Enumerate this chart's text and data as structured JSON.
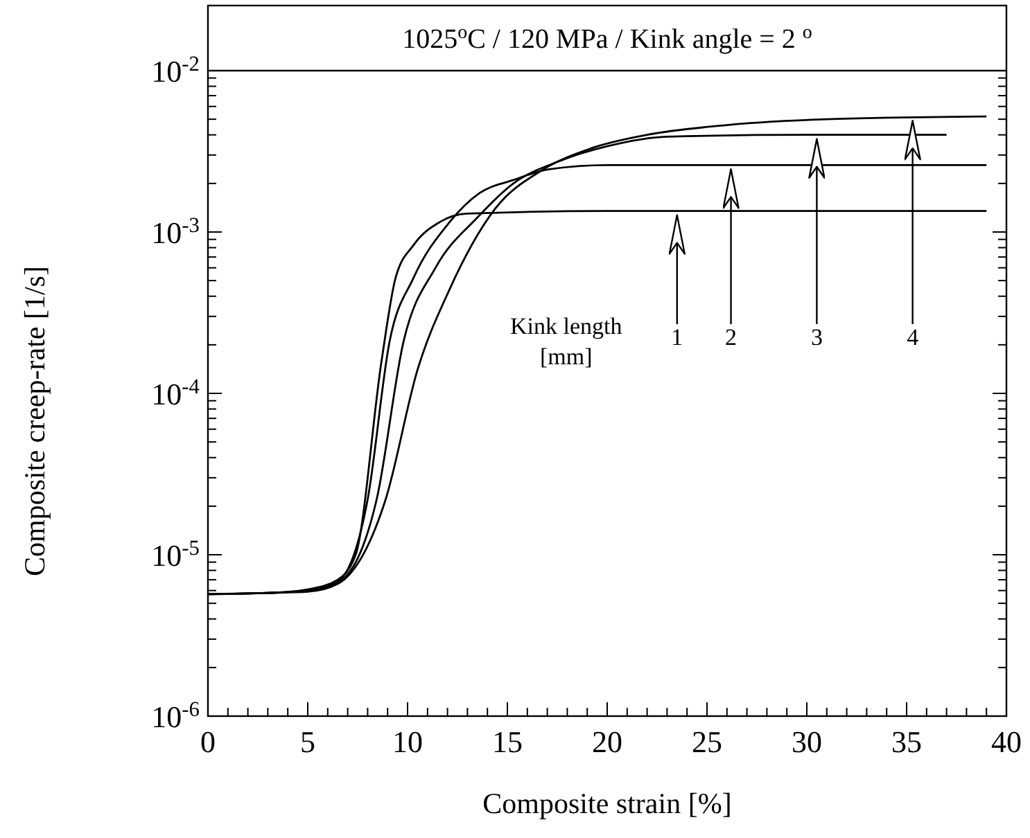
{
  "chart_data": {
    "type": "line",
    "title": "1025$^{o}$C / 120 MPa / Kink angle = 2 $^{o}$",
    "xlabel": "Composite strain [%]",
    "ylabel": "Composite creep-rate [1/s]",
    "log": "y",
    "xlim": [
      0,
      40
    ],
    "ylim": [
      1e-06,
      0.01
    ],
    "xticks": [
      0,
      {
        "value": 1,
        "label": null
      },
      {
        "value": 2,
        "label": null
      },
      {
        "value": 3,
        "label": null
      },
      {
        "value": 4,
        "label": null
      },
      5,
      {
        "value": 6,
        "label": null
      },
      {
        "value": 7,
        "label": null
      },
      {
        "value": 8,
        "label": null
      },
      {
        "value": 9,
        "label": null
      },
      10,
      {
        "value": 11,
        "label": null
      },
      {
        "value": 12,
        "label": null
      },
      {
        "value": 13,
        "label": null
      },
      {
        "value": 14,
        "label": null
      },
      15,
      {
        "value": 16,
        "label": null
      },
      {
        "value": 17,
        "label": null
      },
      {
        "value": 18,
        "label": null
      },
      {
        "value": 19,
        "label": null
      },
      20,
      {
        "value": 21,
        "label": null
      },
      {
        "value": 22,
        "label": null
      },
      {
        "value": 23,
        "label": null
      },
      {
        "value": 24,
        "label": null
      },
      25,
      {
        "value": 26,
        "label": null
      },
      {
        "value": 27,
        "label": null
      },
      {
        "value": 28,
        "label": null
      },
      {
        "value": 29,
        "label": null
      },
      30,
      {
        "value": 31,
        "label": null
      },
      {
        "value": 32,
        "label": null
      },
      {
        "value": 33,
        "label": null
      },
      {
        "value": 34,
        "label": null
      },
      35,
      {
        "value": 36,
        "label": null
      },
      {
        "value": 37,
        "label": null
      },
      {
        "value": 38,
        "label": null
      },
      {
        "value": 39,
        "label": null
      },
      40
    ],
    "yticks": [
      {
        "value": 1e-06,
        "label": "10$^{-6}$"
      },
      {
        "value": 2e-06,
        "label": null
      },
      {
        "value": 3e-06,
        "label": null
      },
      {
        "value": 4e-06,
        "label": null
      },
      {
        "value": 5e-06,
        "label": null
      },
      {
        "value": 6e-06,
        "label": null
      },
      {
        "value": 7e-06,
        "label": null
      },
      {
        "value": 8e-06,
        "label": null
      },
      {
        "value": 9e-06,
        "label": null
      },
      {
        "value": 1e-05,
        "label": "10$^{-5}$"
      },
      {
        "value": 2e-05,
        "label": null
      },
      {
        "value": 3e-05,
        "label": null
      },
      {
        "value": 4e-05,
        "label": null
      },
      {
        "value": 5e-05,
        "label": null
      },
      {
        "value": 6e-05,
        "label": null
      },
      {
        "value": 7e-05,
        "label": null
      },
      {
        "value": 8e-05,
        "label": null
      },
      {
        "value": 9e-05,
        "label": null
      },
      {
        "value": 0.0001,
        "label": "10$^{-4}$"
      },
      {
        "value": 0.0002,
        "label": null
      },
      {
        "value": 0.0003,
        "label": null
      },
      {
        "value": 0.0004,
        "label": null
      },
      {
        "value": 0.0005,
        "label": null
      },
      {
        "value": 0.0006,
        "label": null
      },
      {
        "value": 0.0007,
        "label": null
      },
      {
        "value": 0.0008,
        "label": null
      },
      {
        "value": 0.0009,
        "label": null
      },
      {
        "value": 0.001,
        "label": "10$^{-3}$"
      },
      {
        "value": 0.002,
        "label": null
      },
      {
        "value": 0.003,
        "label": null
      },
      {
        "value": 0.004,
        "label": null
      },
      {
        "value": 0.005,
        "label": null
      },
      {
        "value": 0.006,
        "label": null
      },
      {
        "value": 0.007,
        "label": null
      },
      {
        "value": 0.008,
        "label": null
      },
      {
        "value": 0.009,
        "label": null
      },
      {
        "value": 0.01,
        "label": "10$^{-2}$"
      }
    ],
    "grid": false,
    "marker": "none",
    "line_style": "solid",
    "series": [
      {
        "color": "#000000",
        "x": [
          0,
          3,
          5,
          6.5,
          7.4,
          8.7,
          9.4,
          10.3,
          11.6,
          13,
          20,
          30,
          39
        ],
        "values": [
          5.7e-06,
          5.8e-06,
          6.1e-06,
          7e-06,
          1e-05,
          0.00016,
          0.00052,
          0.00083,
          0.00115,
          0.0013,
          0.00135,
          0.00135,
          0.00135
        ]
      },
      {
        "color": "#000000",
        "x": [
          0,
          3,
          5,
          6.5,
          8,
          9.1,
          10.3,
          12.1,
          13.6,
          15.3,
          17.1,
          20,
          30,
          39
        ],
        "values": [
          5.7e-06,
          5.8e-06,
          6e-06,
          6.8e-06,
          2.2e-05,
          0.00021,
          0.00052,
          0.00115,
          0.00174,
          0.0021,
          0.00245,
          0.0026,
          0.0026,
          0.0026
        ]
      },
      {
        "color": "#000000",
        "x": [
          0,
          3,
          5,
          6.5,
          8.45,
          9.8,
          11.4,
          13.5,
          15.3,
          17.6,
          20,
          23,
          30,
          37
        ],
        "values": [
          5.7e-06,
          5.8e-06,
          6e-06,
          6.7e-06,
          2.2e-05,
          0.00021,
          0.0006,
          0.00123,
          0.002,
          0.00275,
          0.0034,
          0.0039,
          0.004,
          0.004
        ]
      },
      {
        "color": "#000000",
        "x": [
          0,
          3,
          5,
          6.5,
          8.9,
          10.5,
          12.1,
          14.4,
          16.7,
          19.2,
          22,
          26,
          31,
          39
        ],
        "values": [
          5.7e-06,
          5.8e-06,
          5.9e-06,
          6.6e-06,
          2.2e-05,
          0.00014,
          0.00044,
          0.0014,
          0.0024,
          0.0033,
          0.004,
          0.0046,
          0.005,
          0.0052
        ]
      }
    ],
    "annotations": [
      "Kink length\n[mm]",
      {
        "text": "1",
        "x": 23.5,
        "y": 0.00135
      },
      {
        "text": "2",
        "x": 26.2,
        "y": 0.0026
      },
      {
        "text": "3",
        "x": 30.5,
        "y": 0.004
      },
      {
        "text": "4",
        "x": 35.3,
        "y": 0.0052
      }
    ]
  }
}
